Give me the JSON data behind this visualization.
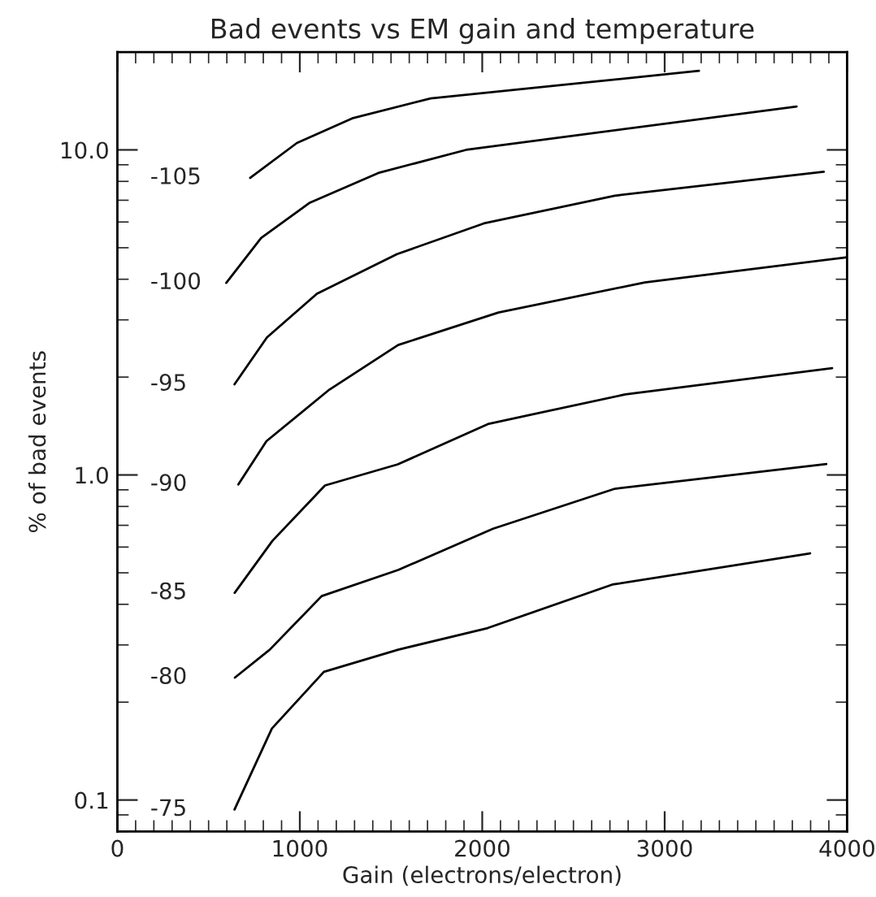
{
  "chart_data": {
    "type": "line",
    "title": "Bad events vs EM gain and temperature",
    "xlabel": "Gain (electrons/electron)",
    "ylabel": "% of bad events",
    "log": "y",
    "xlim": [
      0,
      4000
    ],
    "xticks": [
      0,
      1000,
      2000,
      3000,
      4000
    ],
    "ylim": [
      0.08,
      20
    ],
    "yticks": [
      {
        "value": 0.1,
        "label": "0.1"
      },
      {
        "value": 1,
        "label": "1.0"
      },
      {
        "value": 10,
        "label": "10.0"
      }
    ],
    "grid": false,
    "legend": false,
    "marker": "none",
    "line_style": "solid",
    "series": [
      {
        "name": "-105",
        "color": "#000000",
        "x": [
          728,
          984,
          1287,
          1717,
          3188
        ],
        "values": [
          8.2,
          10.5,
          12.5,
          14.4,
          17.5
        ]
      },
      {
        "name": "-100",
        "color": "#000000",
        "x": [
          597,
          788,
          1055,
          1430,
          1911,
          3723
        ],
        "values": [
          3.9,
          5.36,
          6.88,
          8.49,
          10.0,
          13.6
        ]
      },
      {
        "name": "-95",
        "color": "#000000",
        "x": [
          642,
          820,
          1094,
          1533,
          2009,
          2727,
          3872
        ],
        "values": [
          1.9,
          2.65,
          3.61,
          4.78,
          5.94,
          7.23,
          8.56
        ]
      },
      {
        "name": "-90",
        "color": "#000000",
        "x": [
          663,
          817,
          1162,
          1539,
          2089,
          2891,
          3992
        ],
        "values": [
          0.935,
          1.27,
          1.83,
          2.51,
          3.16,
          3.91,
          4.67
        ]
      },
      {
        "name": "-85",
        "color": "#000000",
        "x": [
          643,
          850,
          1138,
          1537,
          2036,
          2785,
          3918
        ],
        "values": [
          0.434,
          0.627,
          0.928,
          1.078,
          1.437,
          1.77,
          2.13
        ]
      },
      {
        "name": "-80",
        "color": "#000000",
        "x": [
          644,
          835,
          1120,
          1539,
          2059,
          2727,
          3886
        ],
        "values": [
          0.238,
          0.29,
          0.424,
          0.51,
          0.683,
          0.907,
          1.08
        ]
      },
      {
        "name": "-75",
        "color": "#000000",
        "x": [
          642,
          847,
          1132,
          1539,
          2029,
          2713,
          3797
        ],
        "values": [
          0.0935,
          0.166,
          0.248,
          0.29,
          0.338,
          0.46,
          0.574
        ]
      }
    ]
  }
}
